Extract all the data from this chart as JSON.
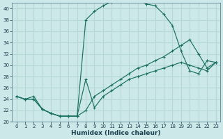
{
  "xlabel": "Humidex (Indice chaleur)",
  "bg_color": "#cce8e8",
  "grid_color": "#b8d8d8",
  "line_color": "#1a7060",
  "xlim": [
    -0.5,
    23.5
  ],
  "ylim": [
    20,
    41
  ],
  "xticks": [
    0,
    1,
    2,
    3,
    4,
    5,
    6,
    7,
    8,
    9,
    10,
    11,
    12,
    13,
    14,
    15,
    16,
    17,
    18,
    19,
    20,
    21,
    22,
    23
  ],
  "yticks": [
    20,
    22,
    24,
    26,
    28,
    30,
    32,
    34,
    36,
    38,
    40
  ],
  "curve_upper_x": [
    0,
    1,
    2,
    3,
    4,
    5,
    6,
    7,
    8,
    9,
    10,
    11,
    12,
    13,
    14,
    15,
    16,
    17,
    18,
    19,
    20,
    21,
    22,
    23
  ],
  "curve_upper_y": [
    24.5,
    24.0,
    24.0,
    22.2,
    21.5,
    21.0,
    21.0,
    21.0,
    38.0,
    39.5,
    40.5,
    41.2,
    41.5,
    41.8,
    41.5,
    40.8,
    40.5,
    39.0,
    37.0,
    32.5,
    29.0,
    28.5,
    30.8,
    30.5
  ],
  "curve_mid_x": [
    0,
    1,
    2,
    3,
    4,
    5,
    6,
    7,
    8,
    9,
    10,
    11,
    12,
    13,
    14,
    15,
    16,
    17,
    18,
    19,
    20,
    21,
    22,
    23
  ],
  "curve_mid_y": [
    24.5,
    24.0,
    24.5,
    22.2,
    21.5,
    21.0,
    21.0,
    21.0,
    22.0,
    24.5,
    25.5,
    26.5,
    27.5,
    28.5,
    29.5,
    30.0,
    30.8,
    31.5,
    32.5,
    33.5,
    34.5,
    32.0,
    29.5,
    30.5
  ],
  "curve_low_x": [
    0,
    1,
    2,
    3,
    4,
    5,
    6,
    7,
    8,
    9,
    10,
    11,
    12,
    13,
    14,
    15,
    16,
    17,
    18,
    19,
    20,
    21,
    22,
    23
  ],
  "curve_low_y": [
    24.5,
    24.0,
    24.0,
    22.2,
    21.5,
    21.0,
    21.0,
    21.0,
    27.5,
    22.5,
    24.5,
    25.5,
    26.5,
    27.5,
    28.0,
    28.5,
    29.0,
    29.5,
    30.0,
    30.5,
    30.0,
    29.5,
    29.0,
    30.5
  ]
}
